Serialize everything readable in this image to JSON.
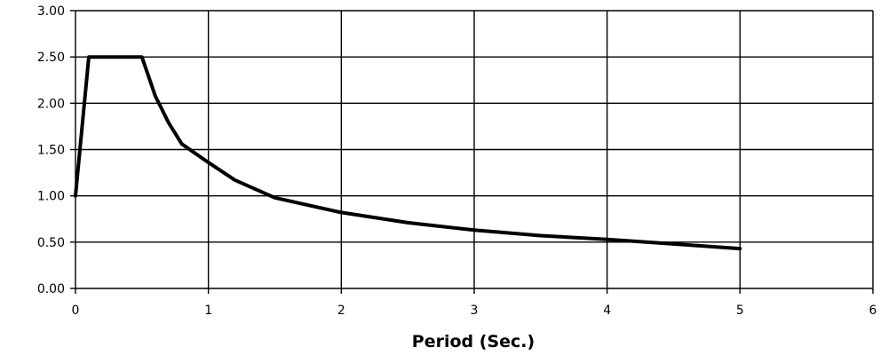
{
  "chart_data": {
    "type": "line",
    "title": "",
    "xlabel": "Period (Sec.)",
    "ylabel": "",
    "xlim": [
      0,
      6
    ],
    "ylim": [
      0,
      3
    ],
    "x_ticks": [
      "0",
      "1",
      "2",
      "3",
      "4",
      "5",
      "6"
    ],
    "y_ticks": [
      "0.00",
      "0.50",
      "1.00",
      "1.50",
      "2.00",
      "2.50",
      "3.00"
    ],
    "grid": true,
    "legend": "none",
    "series": [
      {
        "color": "#000000",
        "x": [
          0,
          0.1,
          0.5,
          0.6,
          0.7,
          0.8,
          1.0,
          1.2,
          1.5,
          2.0,
          2.5,
          3.0,
          3.5,
          4.0,
          4.5,
          5.0
        ],
        "y": [
          1.0,
          2.5,
          2.5,
          2.08,
          1.79,
          1.56,
          1.36,
          1.17,
          0.98,
          0.82,
          0.71,
          0.63,
          0.57,
          0.53,
          0.48,
          0.43
        ]
      }
    ]
  }
}
